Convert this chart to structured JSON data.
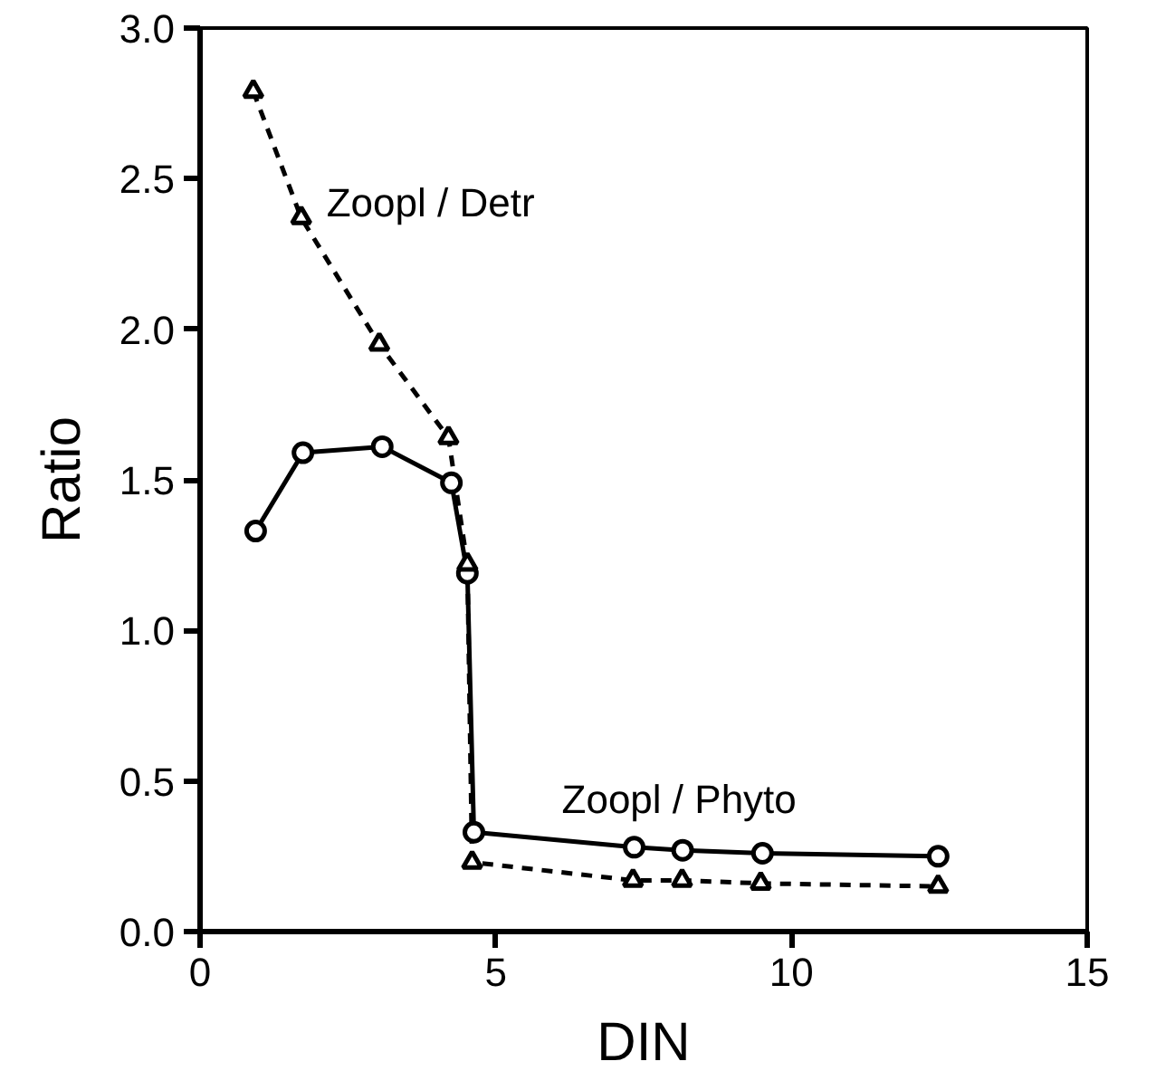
{
  "chart_data": {
    "type": "line",
    "xlabel": "DIN",
    "ylabel": "Ratio",
    "xlim": [
      0,
      15
    ],
    "ylim": [
      0,
      3
    ],
    "xticks": [
      0,
      5,
      10,
      15
    ],
    "yticks": [
      {
        "value": 0,
        "label": "0.0"
      },
      {
        "value": 0.5,
        "label": "0.5"
      },
      {
        "value": 1,
        "label": "1.0"
      },
      {
        "value": 1.5,
        "label": "1.5"
      },
      {
        "value": 2,
        "label": "2.0"
      },
      {
        "value": 2.5,
        "label": "2.5"
      },
      {
        "value": 3,
        "label": "3.0"
      }
    ],
    "grid": false,
    "series": [
      {
        "name": "Zoopl / Detr",
        "color": "#000000",
        "marker": "triangle",
        "line_style": "dashed",
        "x": [
          0.9,
          1.71,
          3.03,
          4.2,
          4.52,
          4.6,
          7.32,
          8.15,
          9.48,
          12.48
        ],
        "values": [
          2.79,
          2.37,
          1.95,
          1.64,
          1.22,
          0.23,
          0.17,
          0.17,
          0.16,
          0.15
        ]
      },
      {
        "name": "Zoopl / Phyto",
        "color": "#000000",
        "marker": "circle",
        "line_style": "solid",
        "x": [
          0.94,
          1.74,
          3.08,
          4.25,
          4.52,
          4.63,
          7.34,
          8.16,
          9.51,
          12.48
        ],
        "values": [
          1.33,
          1.59,
          1.61,
          1.49,
          1.19,
          0.33,
          0.28,
          0.27,
          0.26,
          0.25
        ]
      }
    ]
  }
}
